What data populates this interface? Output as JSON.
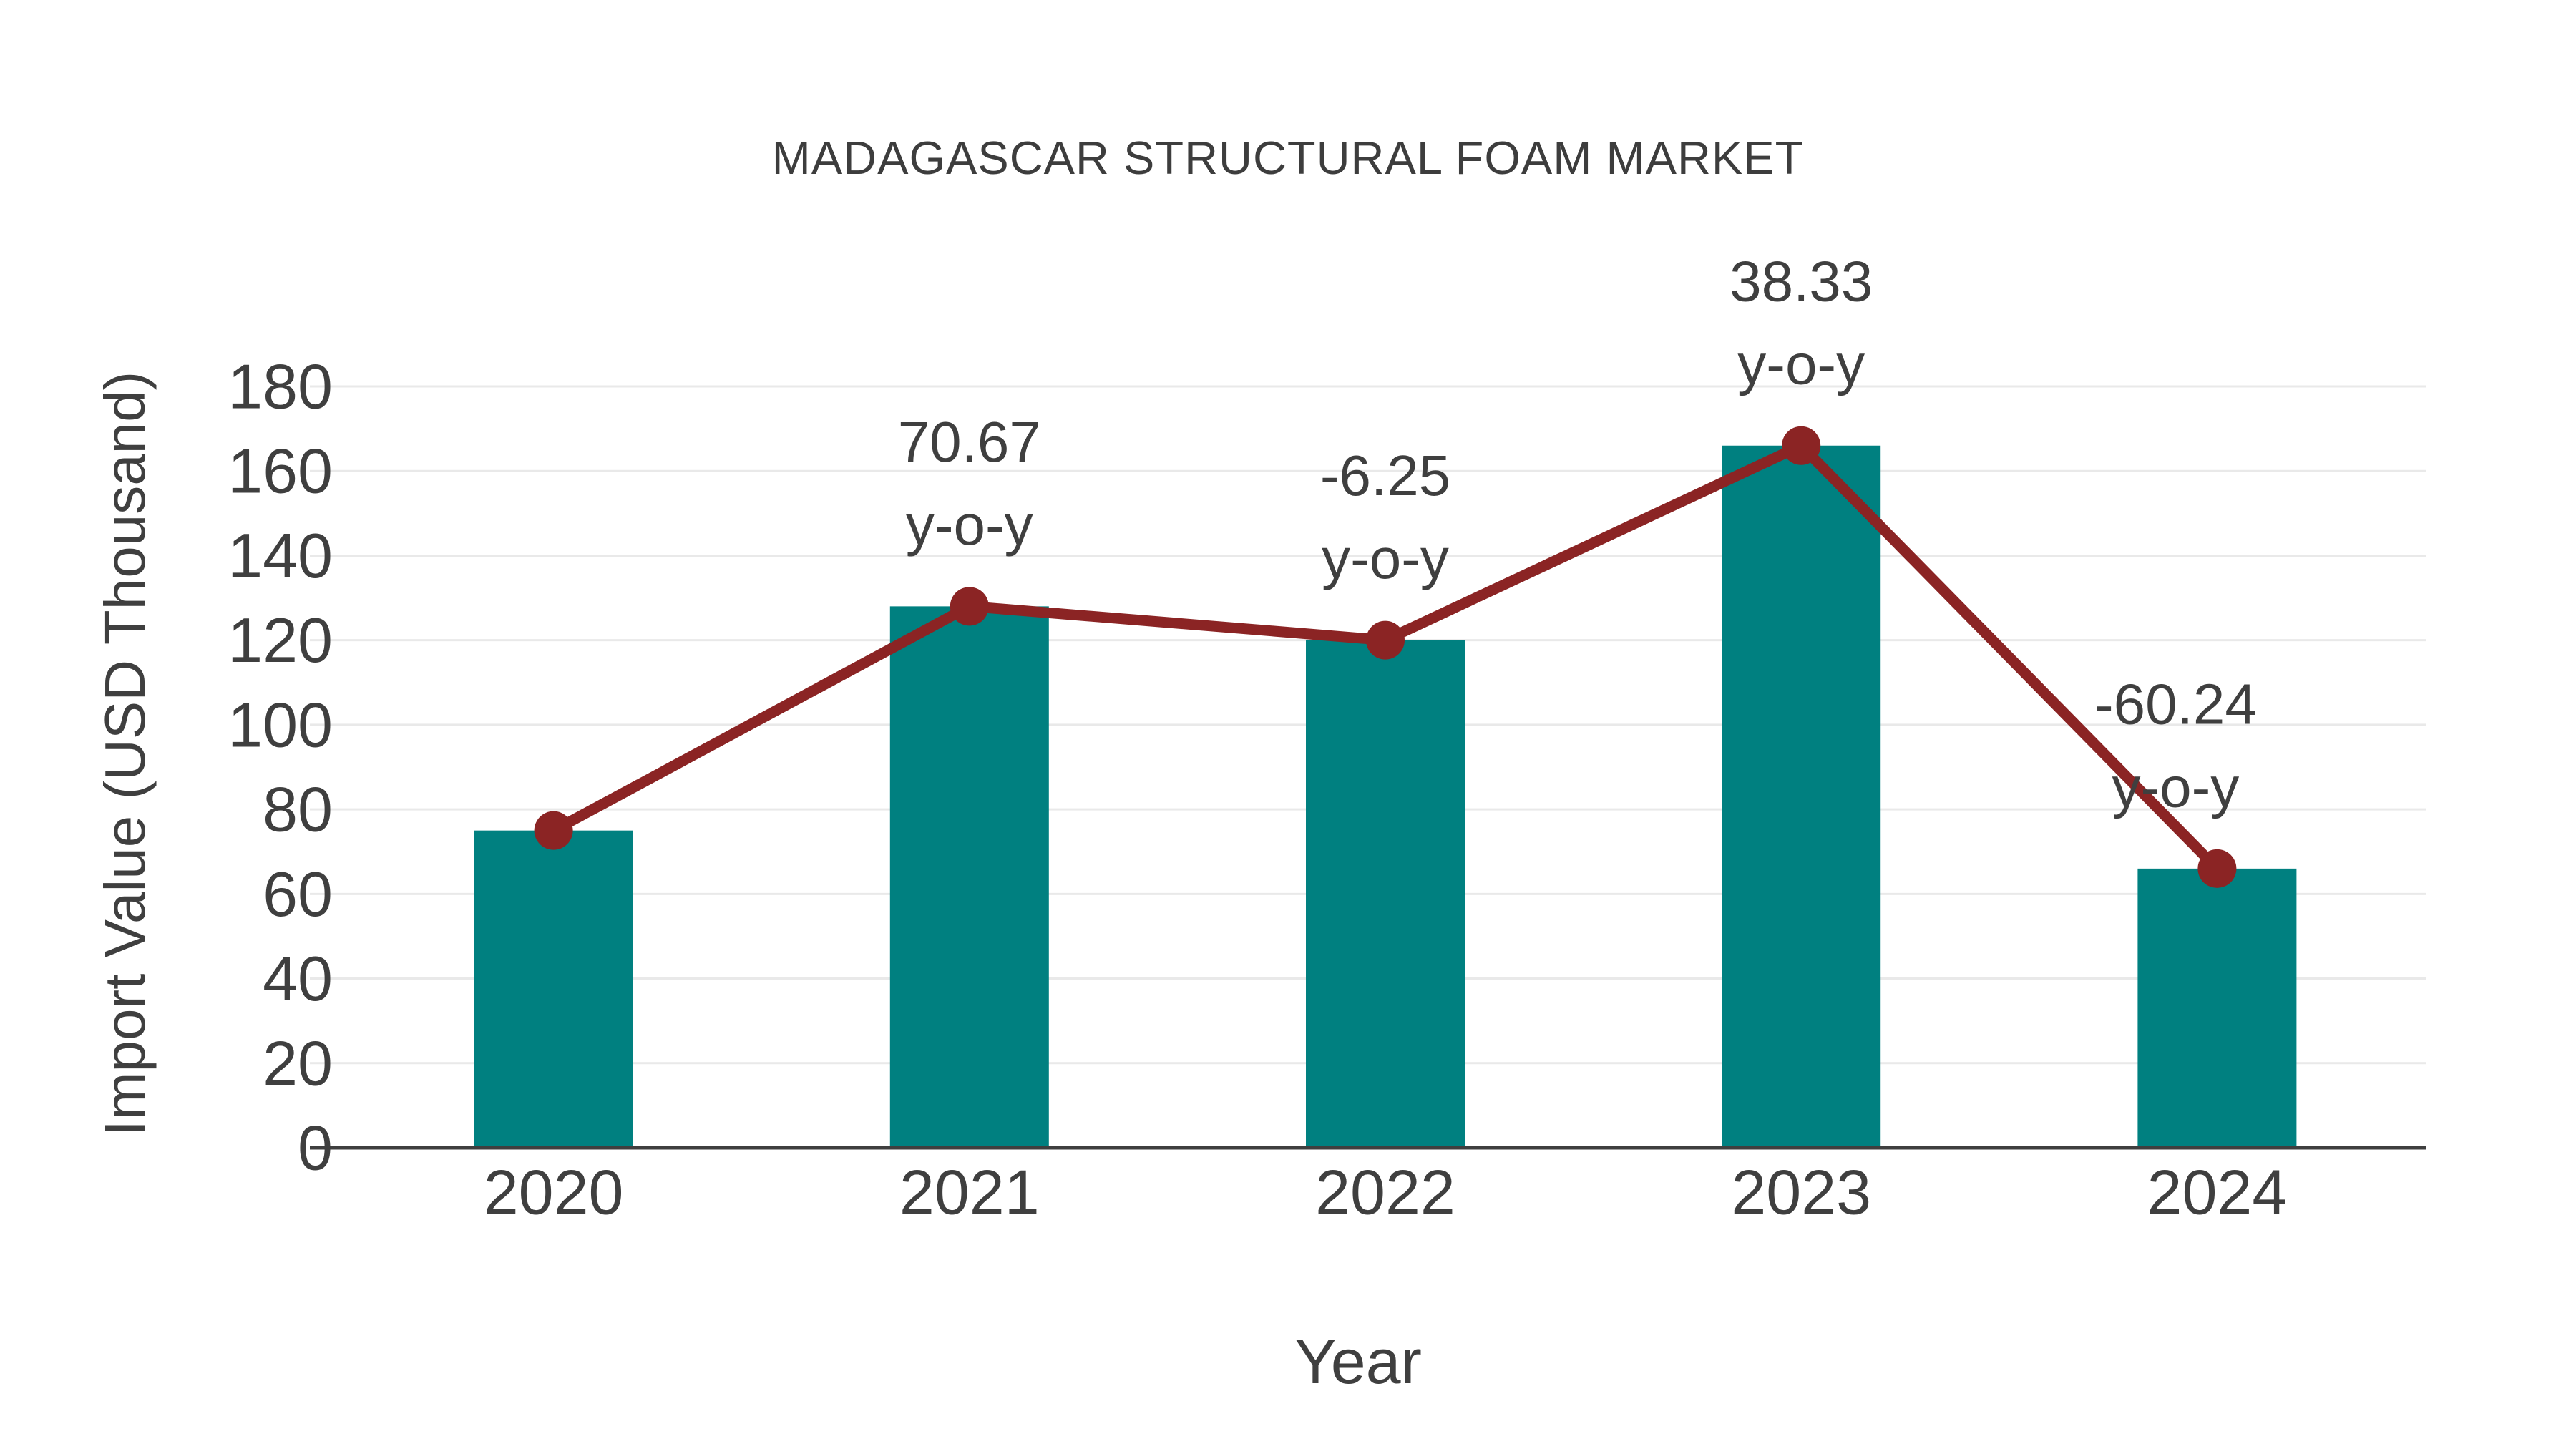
{
  "chart_data": {
    "type": "combo_bar_line",
    "title": "MADAGASCAR STRUCTURAL FOAM MARKET",
    "xlabel": "Year",
    "ylabel": "Import Value (USD Thousand)",
    "categories": [
      "2020",
      "2021",
      "2022",
      "2023",
      "2024"
    ],
    "series": [
      {
        "name": "import-value-bars",
        "type": "bar",
        "color": "#008080",
        "values": [
          75,
          128,
          120,
          166,
          66
        ]
      },
      {
        "name": "import-value-trend",
        "type": "line",
        "color": "#8b2424",
        "values": [
          75,
          128,
          120,
          166,
          66
        ]
      }
    ],
    "annotations": [
      {
        "category": "2021",
        "line1": "70.67",
        "line2": "y-o-y",
        "dx": 0
      },
      {
        "category": "2022",
        "line1": "-6.25",
        "line2": "y-o-y",
        "dx": 0
      },
      {
        "category": "2023",
        "line1": "38.33",
        "line2": "y-o-y",
        "dx": 0
      },
      {
        "category": "2024",
        "line1": "-60.24",
        "line2": "y-o-y",
        "dx": -58
      }
    ],
    "ylim": [
      0,
      180
    ],
    "ytick_step": 20,
    "grid": true,
    "legend_position": "none"
  },
  "style": {
    "grid_color": "#e9e9e9",
    "axis_color": "#3f3f3f",
    "tick_text_color": "#3f3f3f",
    "annotation_text_color": "#3f3f3f",
    "background_color": "#ffffff"
  }
}
